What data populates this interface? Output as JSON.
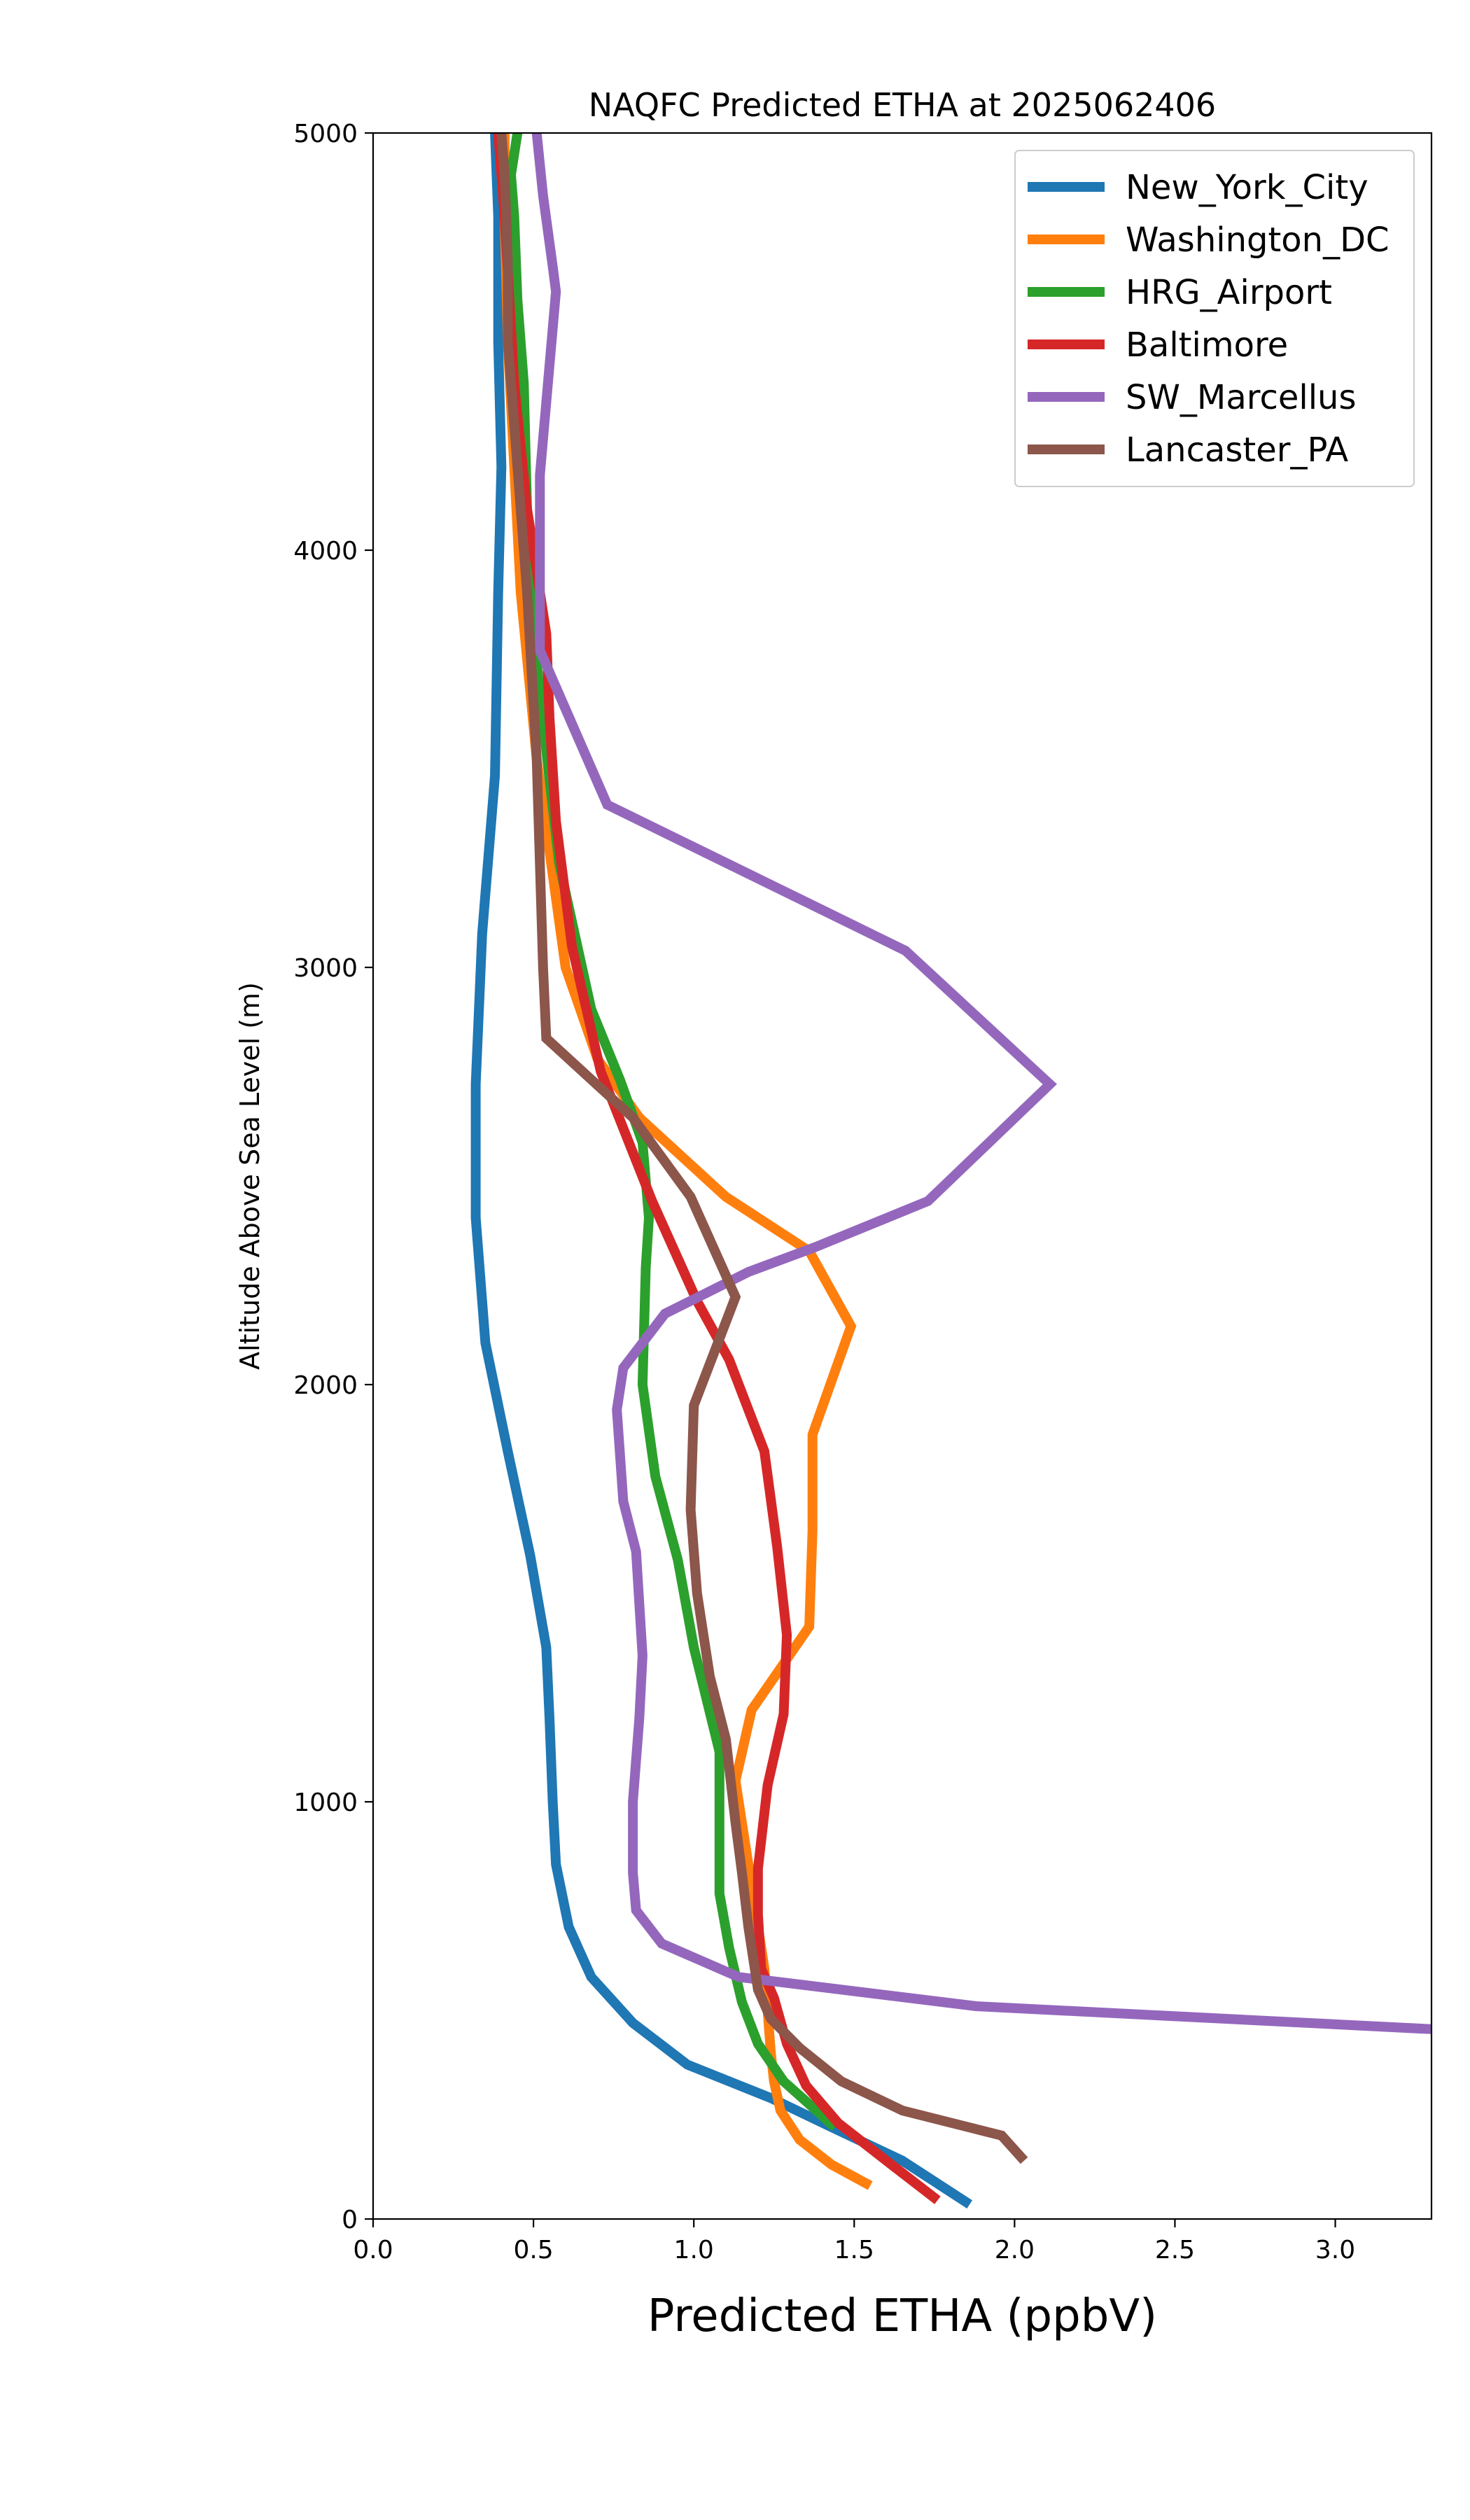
{
  "chart_data": {
    "type": "line",
    "title": "NAQFC Predicted ETHA at 2025062406",
    "xlabel": "Predicted ETHA (ppbV)",
    "ylabel": "Altitude Above Sea Level (m)",
    "xlim": [
      0,
      3.3
    ],
    "ylim": [
      0,
      5000
    ],
    "x_ticks": [
      0.0,
      0.5,
      1.0,
      1.5,
      2.0,
      2.5,
      3.0
    ],
    "x_tick_labels": [
      "0.0",
      "0.5",
      "1.0",
      "1.5",
      "2.0",
      "2.5",
      "3.0"
    ],
    "y_ticks": [
      0,
      1000,
      2000,
      3000,
      4000,
      5000
    ],
    "y_tick_labels": [
      "0",
      "1000",
      "2000",
      "3000",
      "4000",
      "5000"
    ],
    "grid": false,
    "legend_position": "top-right",
    "series": [
      {
        "name": "New_York_City",
        "color": "#1f77b4",
        "x": [
          1.86,
          1.65,
          1.43,
          1.24,
          0.98,
          0.81,
          0.68,
          0.61,
          0.57,
          0.56,
          0.55,
          0.54,
          0.54,
          0.49,
          0.42,
          0.35,
          0.32,
          0.32,
          0.34,
          0.38,
          0.39,
          0.4,
          0.39,
          0.39,
          0.38,
          0.38
        ],
        "y": [
          35,
          140,
          220,
          290,
          370,
          470,
          580,
          700,
          850,
          1000,
          1200,
          1370,
          1370,
          1590,
          1840,
          2100,
          2400,
          2720,
          3080,
          3460,
          3900,
          4200,
          4500,
          4800,
          5000,
          5000
        ]
      },
      {
        "name": "Washington_DC",
        "color": "#ff7f0e",
        "x": [
          1.55,
          1.43,
          1.33,
          1.27,
          1.25,
          1.24,
          1.22,
          1.18,
          1.13,
          1.18,
          1.36,
          1.37,
          1.37,
          1.49,
          1.36,
          1.1,
          0.83,
          0.7,
          0.6,
          0.51,
          0.46,
          0.44,
          0.42,
          0.41,
          0.41
        ],
        "y": [
          80,
          130,
          190,
          260,
          330,
          400,
          600,
          800,
          1050,
          1220,
          1420,
          1650,
          1880,
          2140,
          2320,
          2450,
          2640,
          2780,
          3000,
          3500,
          3900,
          4200,
          4500,
          4800,
          5000
        ]
      },
      {
        "name": "HRG_Airport",
        "color": "#2ca02c",
        "x": [
          1.44,
          1.28,
          1.2,
          1.15,
          1.11,
          1.08,
          1.08,
          1.08,
          1.0,
          0.95,
          0.88,
          0.84,
          0.85,
          0.86,
          0.84,
          0.77,
          0.68,
          0.58,
          0.55,
          0.5,
          0.48,
          0.47,
          0.45,
          0.44,
          0.43,
          0.45
        ],
        "y": [
          220,
          330,
          420,
          520,
          650,
          780,
          900,
          1120,
          1370,
          1580,
          1780,
          2000,
          2280,
          2400,
          2580,
          2730,
          2900,
          3250,
          3450,
          3800,
          4100,
          4400,
          4600,
          4800,
          4900,
          5000
        ]
      },
      {
        "name": "Baltimore",
        "color": "#d62728",
        "x": [
          1.76,
          1.6,
          1.45,
          1.35,
          1.29,
          1.25,
          1.21,
          1.2,
          1.2,
          1.23,
          1.28,
          1.29,
          1.26,
          1.22,
          1.11,
          1.01,
          0.87,
          0.71,
          0.62,
          0.57,
          0.55,
          0.54,
          0.48,
          0.44,
          0.41,
          0.39
        ],
        "y": [
          45,
          140,
          230,
          320,
          420,
          530,
          600,
          730,
          840,
          1040,
          1210,
          1400,
          1610,
          1840,
          2060,
          2200,
          2440,
          2750,
          3050,
          3350,
          3600,
          3800,
          4100,
          4400,
          4800,
          5000
        ]
      },
      {
        "name": "SW_Marcellus",
        "color": "#9467bd",
        "x": [
          3.3,
          1.88,
          1.14,
          0.9,
          0.82,
          0.81,
          0.81,
          0.83,
          0.84,
          0.84,
          0.82,
          0.78,
          0.76,
          0.78,
          0.91,
          1.17,
          1.38,
          1.73,
          2.11,
          1.66,
          0.73,
          0.52,
          0.52,
          0.52,
          0.57,
          0.56,
          0.53,
          0.51
        ],
        "y": [
          455,
          510,
          580,
          660,
          740,
          830,
          1000,
          1200,
          1350,
          1350,
          1600,
          1720,
          1940,
          2040,
          2170,
          2270,
          2330,
          2440,
          2720,
          3040,
          3390,
          3760,
          3900,
          4180,
          4620,
          4680,
          4850,
          5000
        ]
      },
      {
        "name": "Lancaster_PA",
        "color": "#8c564b",
        "x": [
          2.03,
          1.96,
          1.65,
          1.46,
          1.33,
          1.24,
          1.2,
          1.17,
          1.15,
          1.13,
          1.1,
          1.05,
          1.01,
          0.99,
          1.0,
          1.13,
          0.99,
          0.81,
          0.54,
          0.53,
          0.51,
          0.48,
          0.45,
          0.42,
          0.42,
          0.41,
          0.4
        ],
        "y": [
          140,
          200,
          260,
          330,
          410,
          480,
          550,
          700,
          830,
          950,
          1150,
          1300,
          1500,
          1700,
          1950,
          2210,
          2450,
          2640,
          2830,
          3000,
          3500,
          3900,
          4200,
          4500,
          4700,
          4900,
          5000
        ]
      }
    ]
  }
}
